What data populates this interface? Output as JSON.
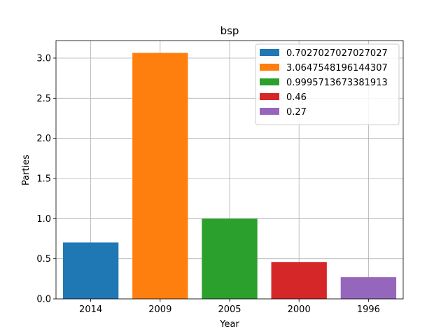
{
  "chart_data": {
    "type": "bar",
    "title": "bsp",
    "xlabel": "Year",
    "ylabel": "Parties",
    "categories": [
      "2014",
      "2009",
      "2005",
      "2000",
      "1996"
    ],
    "values": [
      0.7027027027027027,
      3.0647548196144307,
      0.9995713673381913,
      0.46,
      0.27
    ],
    "colors": [
      "#1f77b4",
      "#ff7f0e",
      "#2ca02c",
      "#d62728",
      "#9467bd"
    ],
    "legend": [
      "0.7027027027027027",
      "3.0647548196144307",
      "0.9995713673381913",
      "0.46",
      "0.27"
    ],
    "legend_position": "top-right",
    "yticks": [
      "0.0",
      "0.5",
      "1.0",
      "1.5",
      "2.0",
      "2.5",
      "3.0"
    ],
    "ylim": [
      0,
      3.218
    ],
    "grid": true
  }
}
